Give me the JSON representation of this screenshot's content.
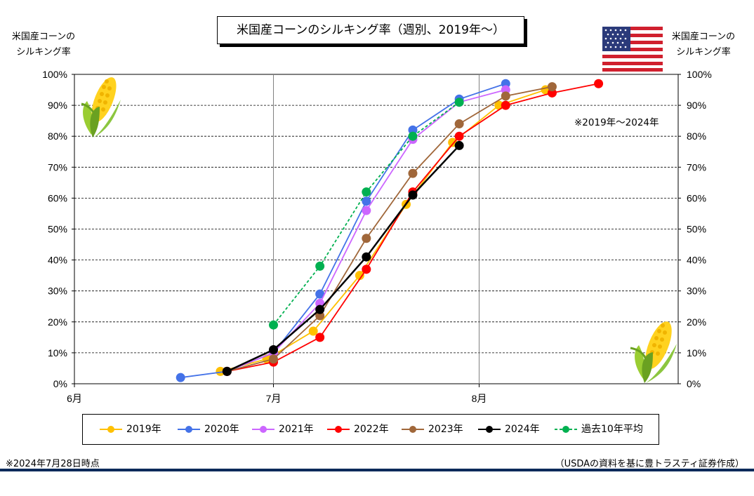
{
  "title": "米国産コーンのシルキング率（週別、2019年～）",
  "left_axis_title": [
    "米国産コーンの",
    "シルキング率"
  ],
  "right_axis_title": [
    "米国産コーンの",
    "シルキング率"
  ],
  "note": "※2019年～2024年",
  "footnote_left": "※2024年7月28日時点",
  "footnote_right": "（USDAの資料を基に豊トラスティ証券作成）",
  "icons": [
    "corn-icon",
    "us-flag-icon"
  ],
  "chart_data": {
    "type": "line",
    "x_axis": {
      "min": "2024-06-01",
      "max": "2024-08-31",
      "ticks": [
        "6月",
        "7月",
        "8月"
      ]
    },
    "y_axis": {
      "min": 0,
      "max": 100,
      "step": 10,
      "unit": "%",
      "ticks": [
        "0%",
        "10%",
        "20%",
        "30%",
        "40%",
        "50%",
        "60%",
        "70%",
        "80%",
        "90%",
        "100%"
      ]
    },
    "grid": {
      "horizontal": "dashed",
      "vertical": "solid at month starts"
    },
    "legend_position": "bottom",
    "series": [
      {
        "name": "2019年",
        "color": "#ffc000",
        "dashed": false,
        "points": [
          [
            "2024-06-23",
            4
          ],
          [
            "2024-06-30",
            8
          ],
          [
            "2024-07-07",
            17
          ],
          [
            "2024-07-14",
            35
          ],
          [
            "2024-07-21",
            58
          ],
          [
            "2024-07-28",
            78
          ],
          [
            "2024-08-04",
            90
          ],
          [
            "2024-08-11",
            95
          ]
        ]
      },
      {
        "name": "2020年",
        "color": "#4472e8",
        "dashed": false,
        "points": [
          [
            "2024-06-17",
            2
          ],
          [
            "2024-06-24",
            4
          ],
          [
            "2024-07-01",
            10
          ],
          [
            "2024-07-08",
            29
          ],
          [
            "2024-07-15",
            59
          ],
          [
            "2024-07-22",
            82
          ],
          [
            "2024-07-29",
            92
          ],
          [
            "2024-08-05",
            97
          ]
        ]
      },
      {
        "name": "2021年",
        "color": "#cc66ff",
        "dashed": false,
        "points": [
          [
            "2024-06-24",
            4
          ],
          [
            "2024-07-01",
            10
          ],
          [
            "2024-07-08",
            26
          ],
          [
            "2024-07-15",
            56
          ],
          [
            "2024-07-22",
            79
          ],
          [
            "2024-07-29",
            91
          ],
          [
            "2024-08-05",
            95
          ]
        ]
      },
      {
        "name": "2022年",
        "color": "#ff0000",
        "dashed": false,
        "points": [
          [
            "2024-06-24",
            4
          ],
          [
            "2024-07-01",
            7
          ],
          [
            "2024-07-08",
            15
          ],
          [
            "2024-07-15",
            37
          ],
          [
            "2024-07-22",
            62
          ],
          [
            "2024-07-29",
            80
          ],
          [
            "2024-08-05",
            90
          ],
          [
            "2024-08-12",
            94
          ],
          [
            "2024-08-19",
            97
          ]
        ]
      },
      {
        "name": "2023年",
        "color": "#a0673a",
        "dashed": false,
        "points": [
          [
            "2024-06-24",
            4
          ],
          [
            "2024-07-01",
            8
          ],
          [
            "2024-07-08",
            22
          ],
          [
            "2024-07-15",
            47
          ],
          [
            "2024-07-22",
            68
          ],
          [
            "2024-07-29",
            84
          ],
          [
            "2024-08-05",
            93
          ],
          [
            "2024-08-12",
            96
          ]
        ]
      },
      {
        "name": "2024年",
        "color": "#000000",
        "dashed": false,
        "points": [
          [
            "2024-06-24",
            4
          ],
          [
            "2024-07-01",
            11
          ],
          [
            "2024-07-08",
            24
          ],
          [
            "2024-07-15",
            41
          ],
          [
            "2024-07-22",
            61
          ],
          [
            "2024-07-29",
            77
          ]
        ]
      },
      {
        "name": "過去10年平均",
        "color": "#00b050",
        "dashed": true,
        "points": [
          [
            "2024-07-01",
            19
          ],
          [
            "2024-07-08",
            38
          ],
          [
            "2024-07-15",
            62
          ],
          [
            "2024-07-22",
            80
          ],
          [
            "2024-07-29",
            91
          ]
        ]
      }
    ]
  }
}
